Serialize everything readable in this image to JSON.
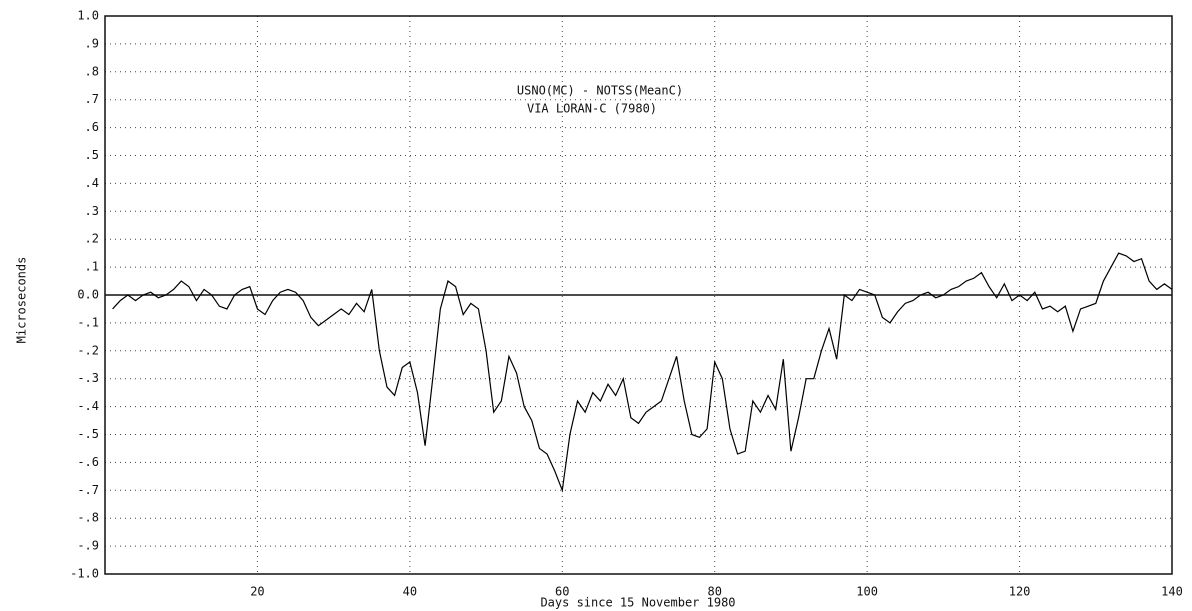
{
  "chart_data": {
    "type": "line",
    "annotations": [
      "USNO(MC) - NOTSS(MeanC)",
      "VIA LORAN-C (7980)"
    ],
    "xlabel": "Days since 15 November 1980",
    "ylabel": "Microseconds",
    "xlim": [
      0,
      140
    ],
    "ylim": [
      -1,
      1
    ],
    "xticks": [
      20,
      40,
      60,
      80,
      100,
      120,
      140
    ],
    "yticks": [
      {
        "value": 1,
        "label": "1.0"
      },
      {
        "value": 0.9,
        "label": ".9"
      },
      {
        "value": 0.8,
        "label": ".8"
      },
      {
        "value": 0.7,
        "label": ".7"
      },
      {
        "value": 0.6,
        "label": ".6"
      },
      {
        "value": 0.5,
        "label": ".5"
      },
      {
        "value": 0.4,
        "label": ".4"
      },
      {
        "value": 0.3,
        "label": ".3"
      },
      {
        "value": 0.2,
        "label": ".2"
      },
      {
        "value": 0.1,
        "label": ".1"
      },
      {
        "value": 0,
        "label": "0.0"
      },
      {
        "value": -0.1,
        "label": "-.1"
      },
      {
        "value": -0.2,
        "label": "-.2"
      },
      {
        "value": -0.3,
        "label": "-.3"
      },
      {
        "value": -0.4,
        "label": "-.4"
      },
      {
        "value": -0.5,
        "label": "-.5"
      },
      {
        "value": -0.6,
        "label": "-.6"
      },
      {
        "value": -0.7,
        "label": "-.7"
      },
      {
        "value": -0.8,
        "label": "-.8"
      },
      {
        "value": -0.9,
        "label": "-.9"
      },
      {
        "value": -1,
        "label": "-1.0"
      }
    ],
    "grid": true,
    "x": [
      1,
      2,
      3,
      4,
      5,
      6,
      7,
      8,
      9,
      10,
      11,
      12,
      13,
      14,
      15,
      16,
      17,
      18,
      19,
      20,
      21,
      22,
      23,
      24,
      25,
      26,
      27,
      28,
      29,
      30,
      31,
      32,
      33,
      34,
      35,
      36,
      37,
      38,
      39,
      40,
      41,
      42,
      43,
      44,
      45,
      46,
      47,
      48,
      49,
      50,
      51,
      52,
      53,
      54,
      55,
      56,
      57,
      58,
      59,
      60,
      61,
      62,
      63,
      64,
      65,
      66,
      67,
      68,
      69,
      70,
      71,
      72,
      73,
      74,
      75,
      76,
      77,
      78,
      79,
      80,
      81,
      82,
      83,
      84,
      85,
      86,
      87,
      88,
      89,
      90,
      91,
      92,
      93,
      94,
      95,
      96,
      97,
      98,
      99,
      100,
      101,
      102,
      103,
      104,
      105,
      106,
      107,
      108,
      109,
      110,
      111,
      112,
      113,
      114,
      115,
      116,
      117,
      118,
      119,
      120,
      121,
      122,
      123,
      124,
      125,
      126,
      127,
      128,
      129,
      130,
      131,
      132,
      133,
      134,
      135,
      136,
      137,
      138,
      139,
      140
    ],
    "series": [
      {
        "color": "#000000",
        "values": [
          -0.05,
          -0.02,
          0.0,
          -0.02,
          0.0,
          0.01,
          -0.01,
          0.0,
          0.02,
          0.05,
          0.03,
          -0.02,
          0.02,
          0.0,
          -0.04,
          -0.05,
          0.0,
          0.02,
          0.03,
          -0.05,
          -0.07,
          -0.02,
          0.01,
          0.02,
          0.01,
          -0.02,
          -0.08,
          -0.11,
          -0.09,
          -0.07,
          -0.05,
          -0.07,
          -0.03,
          -0.06,
          0.02,
          -0.2,
          -0.33,
          -0.36,
          -0.26,
          -0.24,
          -0.35,
          -0.54,
          -0.3,
          -0.05,
          0.05,
          0.03,
          -0.07,
          -0.03,
          -0.05,
          -0.2,
          -0.42,
          -0.38,
          -0.22,
          -0.28,
          -0.4,
          -0.45,
          -0.55,
          -0.57,
          -0.63,
          -0.7,
          -0.5,
          -0.38,
          -0.42,
          -0.35,
          -0.38,
          -0.32,
          -0.36,
          -0.3,
          -0.44,
          -0.46,
          -0.42,
          -0.4,
          -0.38,
          -0.3,
          -0.22,
          -0.38,
          -0.5,
          -0.51,
          -0.48,
          -0.24,
          -0.3,
          -0.48,
          -0.57,
          -0.56,
          -0.38,
          -0.42,
          -0.36,
          -0.41,
          -0.23,
          -0.56,
          -0.44,
          -0.3,
          -0.3,
          -0.2,
          -0.12,
          -0.23,
          0.0,
          -0.02,
          0.02,
          0.01,
          0.0,
          -0.08,
          -0.1,
          -0.06,
          -0.03,
          -0.02,
          0.0,
          0.01,
          -0.01,
          0.0,
          0.02,
          0.03,
          0.05,
          0.06,
          0.08,
          0.03,
          -0.01,
          0.04,
          -0.02,
          0.0,
          -0.02,
          0.01,
          -0.05,
          -0.04,
          -0.06,
          -0.04,
          -0.13,
          -0.05,
          -0.04,
          -0.03,
          0.05,
          0.1,
          0.15,
          0.14,
          0.12,
          0.13,
          0.05,
          0.02,
          0.04,
          0.02
        ]
      }
    ]
  }
}
